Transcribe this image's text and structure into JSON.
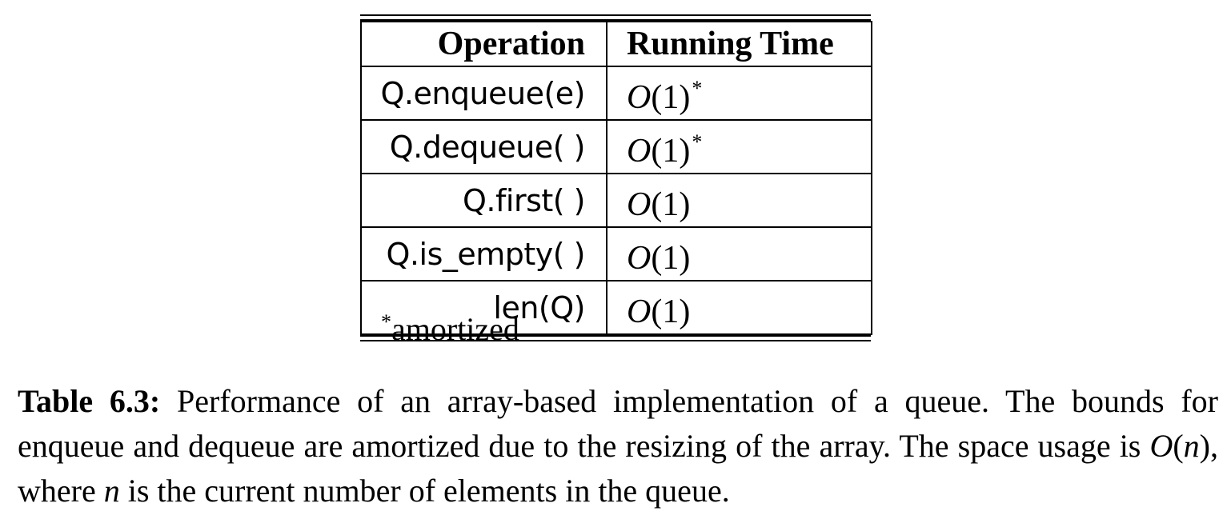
{
  "table": {
    "headers": {
      "operation": "Operation",
      "running_time": "Running Time"
    },
    "rows": [
      {
        "operation": "Q.enqueue(e)",
        "time": "O",
        "time_arg": "(1)",
        "star": "*"
      },
      {
        "operation": "Q.dequeue( )",
        "time": "O",
        "time_arg": "(1)",
        "star": "*"
      },
      {
        "operation": "Q.first( )",
        "time": "O",
        "time_arg": "(1)",
        "star": ""
      },
      {
        "operation": "Q.is_empty( )",
        "time": "O",
        "time_arg": "(1)",
        "star": ""
      },
      {
        "operation": "len(Q)",
        "time": "O",
        "time_arg": "(1)",
        "star": ""
      }
    ],
    "footnote": {
      "star": "*",
      "text": "amortized"
    }
  },
  "caption": {
    "label": "Table 6.3:",
    "text_1": " Performance of an array-based implementation of a queue. The bounds for enqueue and dequeue are amortized due to the resizing of the array. The space usage is ",
    "bigO": "O",
    "bigO_arg_open": "(",
    "bigO_var": "n",
    "bigO_arg_close": ")",
    "text_2": ", where ",
    "var_n": "n",
    "text_3": " is the current number of elements in the queue."
  }
}
